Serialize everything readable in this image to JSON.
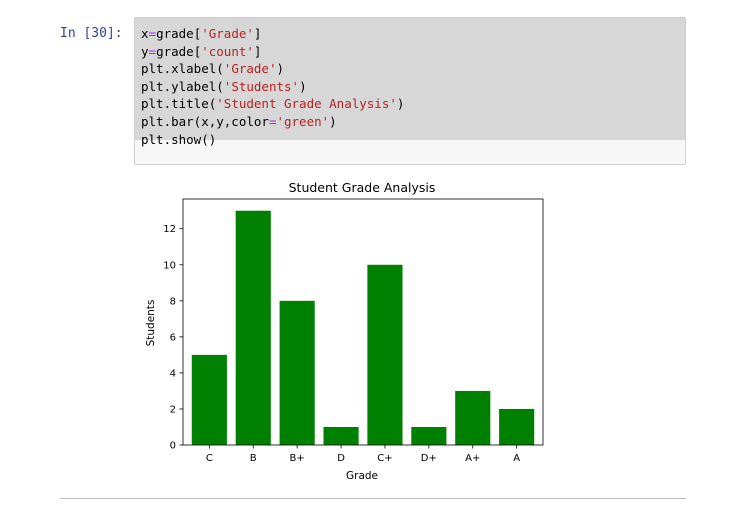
{
  "cell": {
    "prompt": "In [30]:",
    "code_lines": [
      [
        {
          "t": "x"
        },
        {
          "t": "=",
          "c": "o"
        },
        {
          "t": "grade["
        },
        {
          "t": "'Grade'",
          "c": "s"
        },
        {
          "t": "]"
        }
      ],
      [
        {
          "t": "y"
        },
        {
          "t": "=",
          "c": "o"
        },
        {
          "t": "grade["
        },
        {
          "t": "'count'",
          "c": "s"
        },
        {
          "t": "]"
        }
      ],
      [
        {
          "t": "plt.xlabel("
        },
        {
          "t": "'Grade'",
          "c": "s"
        },
        {
          "t": ")"
        }
      ],
      [
        {
          "t": "plt.ylabel("
        },
        {
          "t": "'Students'",
          "c": "s"
        },
        {
          "t": ")"
        }
      ],
      [
        {
          "t": "plt.title("
        },
        {
          "t": "'Student Grade Analysis'",
          "c": "s"
        },
        {
          "t": ")"
        }
      ],
      [
        {
          "t": "plt.bar(x,y,color"
        },
        {
          "t": "=",
          "c": "o"
        },
        {
          "t": "'green'",
          "c": "s"
        },
        {
          "t": ")"
        }
      ],
      [
        {
          "t": "plt.show()"
        }
      ]
    ]
  },
  "chart_data": {
    "type": "bar",
    "title": "Student Grade Analysis",
    "xlabel": "Grade",
    "ylabel": "Students",
    "categories": [
      "C",
      "B",
      "B+",
      "D",
      "C+",
      "D+",
      "A+",
      "A"
    ],
    "values": [
      5,
      13,
      8,
      1,
      10,
      1,
      3,
      2
    ],
    "ylim": [
      0,
      13.65
    ],
    "yticks": [
      0,
      2,
      4,
      6,
      8,
      10,
      12
    ],
    "bar_color": "#008000",
    "grid": false
  }
}
